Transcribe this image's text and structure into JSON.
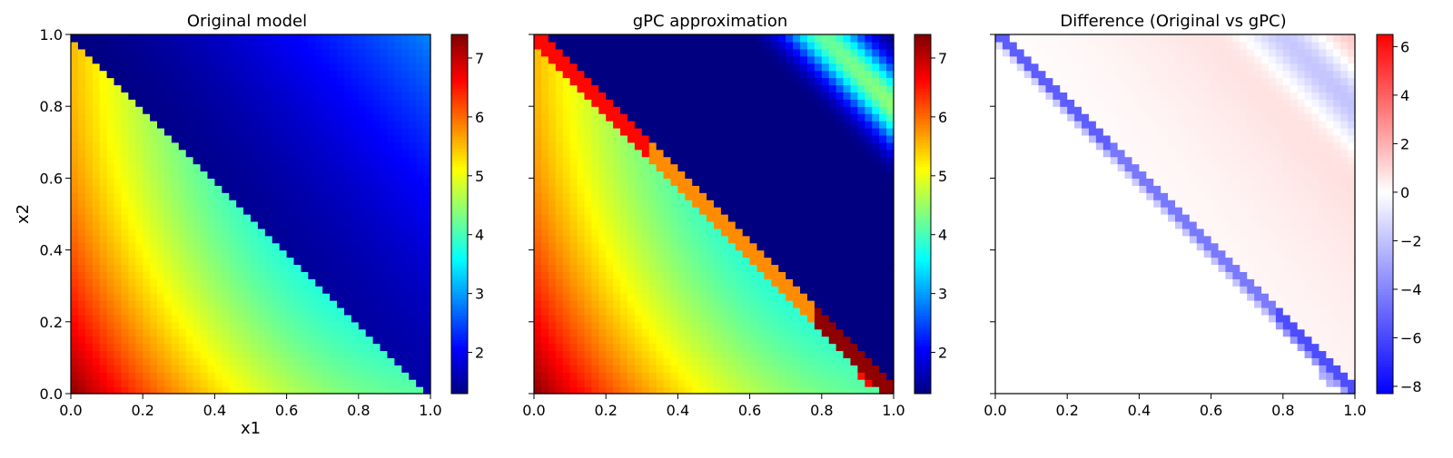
{
  "chart_data": [
    {
      "type": "heatmap",
      "title": "Original model",
      "xlabel": "x1",
      "ylabel": "x2",
      "xlim": [
        0,
        1
      ],
      "ylim": [
        0,
        1
      ],
      "grid": false,
      "colormap": "jet",
      "color_range": [
        1.3,
        7.4
      ],
      "x_ticks": [
        "0.0",
        "0.2",
        "0.4",
        "0.6",
        "0.8",
        "1.0"
      ],
      "y_ticks": [
        "0.0",
        "0.2",
        "0.4",
        "0.6",
        "0.8",
        "1.0"
      ],
      "colorbar_ticks": [
        "2",
        "3",
        "4",
        "5",
        "6",
        "7"
      ],
      "grid_size": [
        50,
        50
      ],
      "regions": [
        {
          "where": "x1 + x2 < 1",
          "corner_value": 7.3,
          "value_at_x1_0.4_x2_0": 5.0,
          "value_near_diagonal": 3.6
        },
        {
          "where": "x1 + x2 > 1",
          "value_near_diagonal": 1.3,
          "value_at_x1_1_x2_1": 2.6
        }
      ]
    },
    {
      "type": "heatmap",
      "title": "gPC approximation",
      "xlabel": "",
      "ylabel": "",
      "xlim": [
        0,
        1
      ],
      "ylim": [
        0,
        1
      ],
      "grid": false,
      "colormap": "jet",
      "color_range": [
        1.3,
        7.4
      ],
      "x_ticks": [
        "0.0",
        "0.2",
        "0.4",
        "0.6",
        "0.8",
        "1.0"
      ],
      "y_ticks": [],
      "colorbar_ticks": [
        "2",
        "3",
        "4",
        "5",
        "6",
        "7"
      ],
      "grid_size": [
        50,
        50
      ],
      "regions": [
        {
          "where": "x1 + x2 < 1",
          "corner_value": 7.3,
          "value_near_diagonal": 3.6
        },
        {
          "where": "x1 + x2 = 1",
          "value_range": [
            5.5,
            7.4
          ]
        },
        {
          "where": "x1 + x2 > 1",
          "value_range": [
            1.3,
            4.5
          ],
          "peak_band": "x1 + x2 = 1.8"
        }
      ]
    },
    {
      "type": "heatmap",
      "title": "Difference (Original vs gPC)",
      "xlabel": "",
      "ylabel": "",
      "xlim": [
        0,
        1
      ],
      "ylim": [
        0,
        1
      ],
      "grid": false,
      "colormap": "bwr",
      "color_range": [
        -8.3,
        6.5
      ],
      "x_ticks": [
        "0.0",
        "0.2",
        "0.4",
        "0.6",
        "0.8",
        "1.0"
      ],
      "y_ticks": [],
      "colorbar_ticks": [
        "6",
        "4",
        "2",
        "0",
        "−2",
        "−4",
        "−6",
        "−8"
      ],
      "grid_size": [
        50,
        50
      ],
      "regions": [
        {
          "where": "x1 + x2 < 1",
          "value": 0
        },
        {
          "where": "x1 + x2 = 1",
          "value_range": [
            -8.3,
            -3
          ]
        },
        {
          "where": "x1 + x2 > 1",
          "value_range": [
            -2,
            2.5
          ]
        }
      ]
    }
  ]
}
